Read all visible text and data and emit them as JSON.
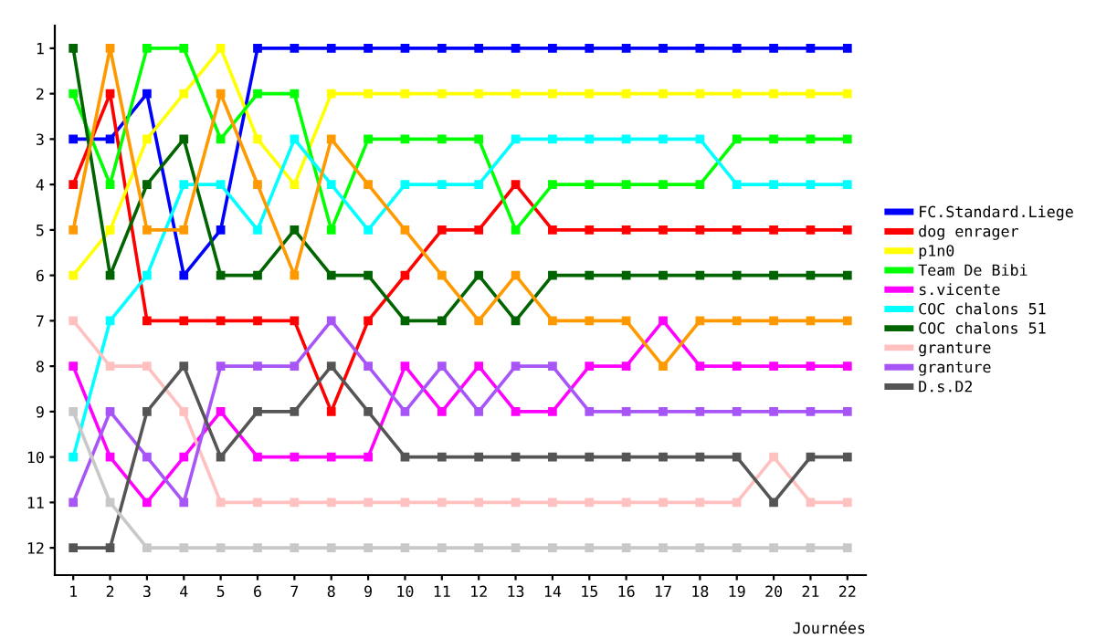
{
  "chart_data": {
    "type": "line",
    "xlabel": "Journées",
    "x": [
      1,
      2,
      3,
      4,
      5,
      6,
      7,
      8,
      9,
      10,
      11,
      12,
      13,
      14,
      15,
      16,
      17,
      18,
      19,
      20,
      21,
      22
    ],
    "xlim": [
      0.5,
      22.5
    ],
    "xticks": [
      1,
      2,
      3,
      4,
      5,
      6,
      7,
      8,
      9,
      10,
      11,
      12,
      13,
      14,
      15,
      16,
      17,
      18,
      19,
      20,
      21,
      22
    ],
    "ylim": [
      12.6,
      0.5
    ],
    "yticks": [
      1,
      2,
      3,
      4,
      5,
      6,
      7,
      8,
      9,
      10,
      11,
      12
    ],
    "grid": false,
    "legend": "right",
    "marker": "square",
    "line_style": "solid",
    "series": [
      {
        "name": "FC.Standard.Liege",
        "color": "#0000ff",
        "values": [
          3,
          3,
          2,
          6,
          5,
          1,
          1,
          1,
          1,
          1,
          1,
          1,
          1,
          1,
          1,
          1,
          1,
          1,
          1,
          1,
          1,
          1
        ]
      },
      {
        "name": "dog enrager",
        "color": "#ff0000",
        "values": [
          4,
          2,
          7,
          7,
          7,
          7,
          7,
          9,
          7,
          6,
          5,
          5,
          4,
          5,
          5,
          5,
          5,
          5,
          5,
          5,
          5,
          5
        ]
      },
      {
        "name": "p1n0",
        "color": "#ffff00",
        "values": [
          6,
          5,
          3,
          2,
          1,
          3,
          4,
          2,
          2,
          2,
          2,
          2,
          2,
          2,
          2,
          2,
          2,
          2,
          2,
          2,
          2,
          2
        ]
      },
      {
        "name": "Team De Bibi",
        "color": "#00ff00",
        "values": [
          2,
          4,
          1,
          1,
          3,
          2,
          2,
          5,
          3,
          3,
          3,
          3,
          5,
          4,
          4,
          4,
          4,
          4,
          3,
          3,
          3,
          3
        ]
      },
      {
        "name": "s.vicente",
        "color": "#ff00ff",
        "values": [
          8,
          10,
          11,
          10,
          9,
          10,
          10,
          10,
          10,
          8,
          9,
          8,
          9,
          9,
          8,
          8,
          7,
          8,
          8,
          8,
          8,
          8
        ]
      },
      {
        "name": "COC chalons 51",
        "color": "#00ffff",
        "values": [
          10,
          7,
          6,
          4,
          4,
          5,
          3,
          4,
          5,
          4,
          4,
          4,
          3,
          3,
          3,
          3,
          3,
          3,
          4,
          4,
          4,
          4
        ]
      },
      {
        "name": "COC chalons 51",
        "color": "#006400",
        "values": [
          1,
          6,
          4,
          3,
          6,
          6,
          5,
          6,
          6,
          7,
          7,
          6,
          7,
          6,
          6,
          6,
          6,
          6,
          6,
          6,
          6,
          6
        ]
      },
      {
        "color": "#ff9900",
        "values": [
          5,
          1,
          5,
          5,
          2,
          4,
          6,
          3,
          4,
          5,
          6,
          7,
          6,
          7,
          7,
          7,
          8,
          7,
          7,
          7,
          7,
          7
        ]
      },
      {
        "name": "granture",
        "color": "#ffc0c0",
        "values": [
          7,
          8,
          8,
          9,
          11,
          11,
          11,
          11,
          11,
          11,
          11,
          11,
          11,
          11,
          11,
          11,
          11,
          11,
          11,
          10,
          11,
          11
        ]
      },
      {
        "name": "granture",
        "color": "#a855f7",
        "values": [
          11,
          9,
          10,
          11,
          8,
          8,
          8,
          7,
          8,
          9,
          8,
          9,
          8,
          8,
          9,
          9,
          9,
          9,
          9,
          9,
          9,
          9
        ]
      },
      {
        "name": "D.s.D2",
        "color": "#555555",
        "values": [
          12,
          12,
          9,
          8,
          10,
          9,
          9,
          8,
          9,
          10,
          10,
          10,
          10,
          10,
          10,
          10,
          10,
          10,
          10,
          11,
          10,
          10
        ]
      },
      {
        "color": "#c8c8c8",
        "values": [
          9,
          11,
          12,
          12,
          12,
          12,
          12,
          12,
          12,
          12,
          12,
          12,
          12,
          12,
          12,
          12,
          12,
          12,
          12,
          12,
          12,
          12
        ]
      }
    ]
  }
}
